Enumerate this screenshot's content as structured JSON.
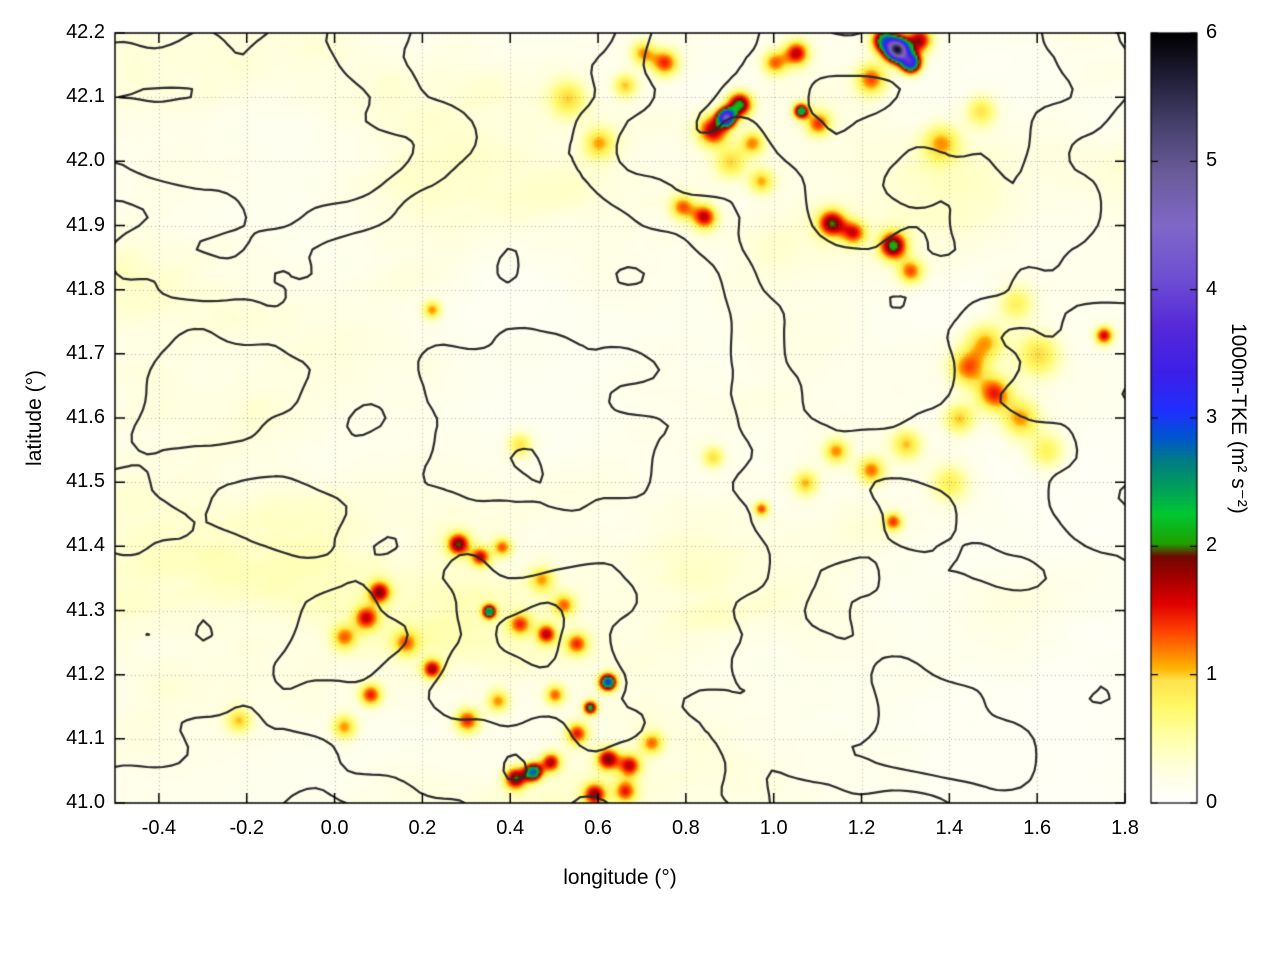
{
  "figure": {
    "title": ""
  },
  "chart_data": {
    "type": "heatmap",
    "title": "",
    "xlabel": "longitude (°)",
    "ylabel": "latitude (°)",
    "xlim": [
      -0.5,
      1.8
    ],
    "ylim": [
      41.0,
      42.2
    ],
    "grid": "dotted",
    "xticks": {
      "values": [
        -0.4,
        -0.2,
        0,
        0.2,
        0.4,
        0.6,
        0.8,
        1,
        1.2,
        1.4,
        1.6,
        1.8
      ],
      "labels": [
        "-0.4",
        "-0.2",
        "0.0",
        "0.2",
        "0.4",
        "0.6",
        "0.8",
        "1.0",
        "1.2",
        "1.4",
        "1.6",
        "1.8"
      ]
    },
    "yticks": {
      "values": [
        41.0,
        41.1,
        41.2,
        41.3,
        41.4,
        41.5,
        41.6,
        41.7,
        41.8,
        41.9,
        42.0,
        42.1,
        42.2
      ],
      "labels": [
        "41.0",
        "41.1",
        "41.2",
        "41.3",
        "41.4",
        "41.5",
        "41.6",
        "41.7",
        "41.8",
        "41.9",
        "42.0",
        "42.1",
        "42.2"
      ]
    },
    "colorbar": {
      "label": "1000m-TKE (m² s⁻²)",
      "min": 0,
      "max": 6,
      "ticks": {
        "values": [
          0,
          1,
          2,
          3,
          4,
          5,
          6
        ],
        "labels": [
          "0",
          "1",
          "2",
          "3",
          "4",
          "5",
          "6"
        ]
      },
      "stops": [
        {
          "v": 0.0,
          "c": "#ffffff"
        },
        {
          "v": 0.25,
          "c": "#ffffe0"
        },
        {
          "v": 0.5,
          "c": "#ffffab"
        },
        {
          "v": 0.75,
          "c": "#fff966"
        },
        {
          "v": 0.95,
          "c": "#ffe34d"
        },
        {
          "v": 1.05,
          "c": "#ffb300"
        },
        {
          "v": 1.2,
          "c": "#ff7700"
        },
        {
          "v": 1.35,
          "c": "#ff3c00"
        },
        {
          "v": 1.55,
          "c": "#e00000"
        },
        {
          "v": 1.75,
          "c": "#a50000"
        },
        {
          "v": 1.92,
          "c": "#700800"
        },
        {
          "v": 2.02,
          "c": "#1fa000"
        },
        {
          "v": 2.25,
          "c": "#00c832"
        },
        {
          "v": 2.45,
          "c": "#00a05a"
        },
        {
          "v": 2.65,
          "c": "#007f7f"
        },
        {
          "v": 2.85,
          "c": "#0055d0"
        },
        {
          "v": 3.05,
          "c": "#1f2fff"
        },
        {
          "v": 3.35,
          "c": "#3c1fe8"
        },
        {
          "v": 3.7,
          "c": "#5528d8"
        },
        {
          "v": 4.1,
          "c": "#6f4fd2"
        },
        {
          "v": 4.5,
          "c": "#7e68c8"
        },
        {
          "v": 4.9,
          "c": "#6b5c9b"
        },
        {
          "v": 5.3,
          "c": "#45406b"
        },
        {
          "v": 5.7,
          "c": "#1c1a30"
        },
        {
          "v": 6.0,
          "c": "#000000"
        }
      ]
    },
    "contour_overlay": {
      "description": "unlabeled terrain-elevation contour lines drawn over the TKE field",
      "color": "#2d2d2d",
      "line_width": 2,
      "level_count": 5
    },
    "field": {
      "name": "1000m-TKE",
      "units": "m² s⁻²",
      "background": "widespread weak TKE (0–0.6) appearing as pale-yellow diagonal streaks; whiter toward the lower-right",
      "hotspots": {
        "fields": [
          "lon",
          "lat",
          "tke",
          "radius_deg"
        ],
        "points": [
          [
            1.28,
            42.175,
            5.2,
            0.018
          ],
          [
            1.31,
            42.155,
            3.2,
            0.016
          ],
          [
            1.25,
            42.19,
            2.2,
            0.02
          ],
          [
            1.33,
            42.19,
            1.6,
            0.02
          ],
          [
            1.22,
            42.13,
            1.2,
            0.025
          ],
          [
            1.05,
            42.17,
            1.5,
            0.02
          ],
          [
            1.0,
            42.155,
            1.1,
            0.02
          ],
          [
            0.75,
            42.155,
            1.3,
            0.022
          ],
          [
            0.7,
            42.17,
            1.0,
            0.02
          ],
          [
            0.66,
            42.12,
            0.9,
            0.02
          ],
          [
            0.89,
            42.07,
            3.6,
            0.014
          ],
          [
            0.92,
            42.09,
            2.0,
            0.02
          ],
          [
            0.86,
            42.05,
            1.6,
            0.025
          ],
          [
            0.95,
            42.03,
            1.0,
            0.02
          ],
          [
            1.06,
            42.08,
            2.2,
            0.012
          ],
          [
            1.1,
            42.06,
            1.2,
            0.02
          ],
          [
            0.6,
            42.03,
            0.9,
            0.025
          ],
          [
            0.53,
            42.1,
            0.8,
            0.03
          ],
          [
            1.38,
            42.03,
            0.9,
            0.03
          ],
          [
            1.47,
            42.08,
            0.8,
            0.025
          ],
          [
            0.84,
            41.915,
            1.5,
            0.02
          ],
          [
            0.79,
            41.93,
            1.1,
            0.02
          ],
          [
            1.13,
            41.905,
            1.7,
            0.022
          ],
          [
            1.18,
            41.89,
            1.3,
            0.02
          ],
          [
            1.27,
            41.87,
            1.9,
            0.022
          ],
          [
            1.31,
            41.83,
            1.1,
            0.02
          ],
          [
            0.97,
            41.97,
            0.9,
            0.02
          ],
          [
            0.22,
            41.77,
            1.0,
            0.015
          ],
          [
            0.42,
            41.56,
            0.8,
            0.02
          ],
          [
            1.44,
            41.68,
            1.1,
            0.03
          ],
          [
            1.5,
            41.64,
            1.3,
            0.028
          ],
          [
            1.56,
            41.6,
            1.0,
            0.03
          ],
          [
            1.42,
            41.6,
            0.9,
            0.025
          ],
          [
            1.48,
            41.72,
            0.9,
            0.03
          ],
          [
            1.75,
            41.73,
            1.5,
            0.015
          ],
          [
            1.3,
            41.56,
            0.9,
            0.025
          ],
          [
            1.22,
            41.52,
            1.1,
            0.022
          ],
          [
            1.14,
            41.55,
            1.0,
            0.02
          ],
          [
            1.07,
            41.5,
            0.9,
            0.02
          ],
          [
            0.97,
            41.46,
            1.2,
            0.012
          ],
          [
            1.27,
            41.44,
            1.2,
            0.015
          ],
          [
            0.86,
            41.54,
            0.8,
            0.018
          ],
          [
            0.28,
            41.405,
            1.7,
            0.018
          ],
          [
            0.33,
            41.385,
            1.4,
            0.016
          ],
          [
            0.38,
            41.4,
            1.1,
            0.015
          ],
          [
            0.1,
            41.33,
            1.5,
            0.018
          ],
          [
            0.07,
            41.29,
            1.3,
            0.02
          ],
          [
            0.02,
            41.26,
            1.0,
            0.02
          ],
          [
            0.16,
            41.25,
            0.9,
            0.02
          ],
          [
            0.35,
            41.3,
            2.3,
            0.011
          ],
          [
            0.42,
            41.28,
            1.1,
            0.018
          ],
          [
            0.48,
            41.265,
            1.4,
            0.016
          ],
          [
            0.55,
            41.25,
            1.1,
            0.018
          ],
          [
            0.22,
            41.21,
            1.5,
            0.016
          ],
          [
            0.08,
            41.17,
            1.3,
            0.018
          ],
          [
            0.02,
            41.12,
            1.0,
            0.02
          ],
          [
            0.3,
            41.13,
            1.3,
            0.02
          ],
          [
            0.37,
            41.16,
            1.0,
            0.018
          ],
          [
            0.5,
            41.17,
            1.1,
            0.016
          ],
          [
            0.62,
            41.19,
            2.9,
            0.013
          ],
          [
            0.58,
            41.15,
            2.1,
            0.011
          ],
          [
            0.55,
            41.11,
            1.3,
            0.018
          ],
          [
            0.45,
            41.05,
            2.6,
            0.014
          ],
          [
            0.41,
            41.04,
            1.8,
            0.018
          ],
          [
            0.49,
            41.065,
            1.5,
            0.016
          ],
          [
            0.62,
            41.07,
            1.6,
            0.018
          ],
          [
            0.67,
            41.06,
            1.4,
            0.018
          ],
          [
            0.72,
            41.095,
            1.0,
            0.018
          ],
          [
            0.59,
            41.015,
            1.5,
            0.018
          ],
          [
            0.66,
            41.02,
            1.2,
            0.018
          ],
          [
            -0.22,
            41.13,
            0.8,
            0.02
          ],
          [
            0.47,
            41.35,
            0.9,
            0.02
          ],
          [
            0.52,
            41.31,
            1.0,
            0.018
          ],
          [
            1.62,
            41.55,
            0.7,
            0.03
          ],
          [
            1.4,
            41.5,
            0.7,
            0.03
          ],
          [
            0.9,
            42.0,
            0.8,
            0.025
          ],
          [
            1.55,
            41.78,
            0.7,
            0.03
          ],
          [
            1.6,
            41.7,
            0.8,
            0.035
          ]
        ]
      }
    }
  }
}
